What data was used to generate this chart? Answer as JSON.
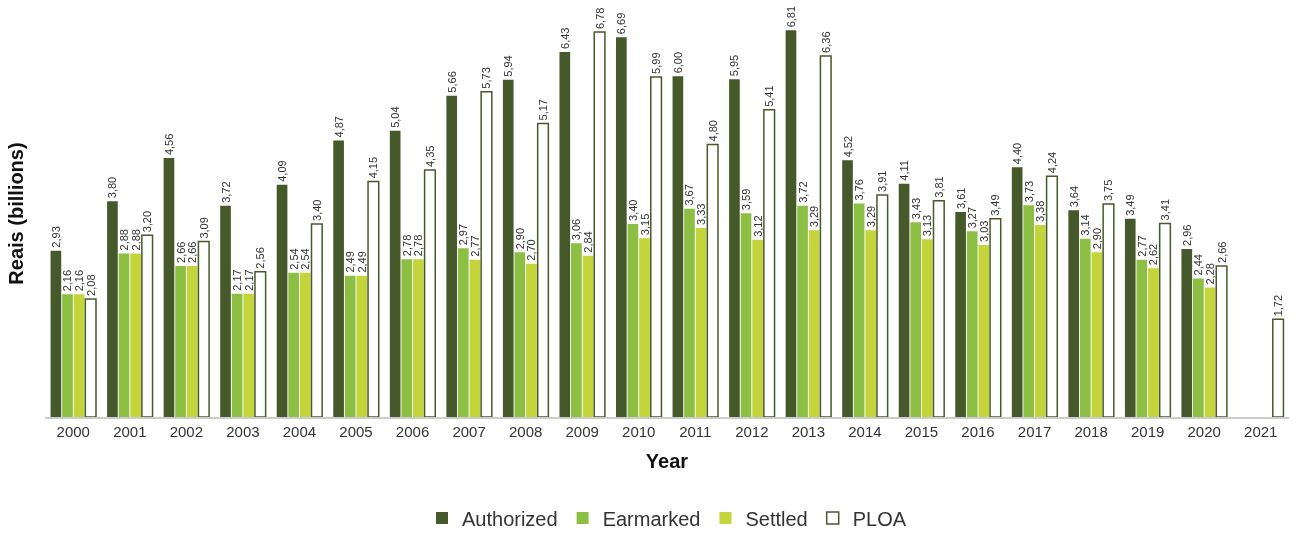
{
  "chart_data": {
    "type": "bar",
    "xlabel": "Year",
    "ylabel": "Reais (billions)",
    "legend": "bottom",
    "categories": [
      "2000",
      "2001",
      "2002",
      "2003",
      "2004",
      "2005",
      "2006",
      "2007",
      "2008",
      "2009",
      "2010",
      "2011",
      "2012",
      "2013",
      "2014",
      "2015",
      "2016",
      "2017",
      "2018",
      "2019",
      "2020",
      "2021"
    ],
    "series": [
      {
        "name": "Authorized",
        "color": "#46592b",
        "values": [
          2.93,
          3.8,
          4.56,
          3.72,
          4.09,
          4.87,
          5.04,
          5.66,
          5.94,
          6.43,
          6.69,
          6.0,
          5.95,
          6.81,
          4.52,
          4.11,
          3.61,
          4.4,
          3.64,
          3.49,
          2.96,
          null
        ],
        "value_labels": [
          "2,93",
          "3,80",
          "4,56",
          "3,72",
          "4,09",
          "4,87",
          "5,04",
          "5,66",
          "5,94",
          "6,43",
          "6,69",
          "6,00",
          "5,95",
          "6,81",
          "4,52",
          "4,11",
          "3,61",
          "4,40",
          "3,64",
          "3,49",
          "2,96",
          null
        ]
      },
      {
        "name": "Earmarked",
        "color": "#8cbf44",
        "values": [
          2.16,
          2.88,
          2.66,
          2.17,
          2.54,
          2.49,
          2.78,
          2.97,
          2.9,
          3.06,
          3.4,
          3.67,
          3.59,
          3.72,
          3.76,
          3.43,
          3.27,
          3.73,
          3.14,
          2.77,
          2.44,
          null
        ],
        "value_labels": [
          "2,16",
          "2,88",
          "2,66",
          "2,17",
          "2,54",
          "2,49",
          "2,78",
          "2,97",
          "2,90",
          "3,06",
          "3,40",
          "3,67",
          "3,59",
          "3,72",
          "3,76",
          "3,43",
          "3,27",
          "3,73",
          "3,14",
          "2,77",
          "2,44",
          null
        ]
      },
      {
        "name": "Settled",
        "color": "#c3d53a",
        "values": [
          2.16,
          2.88,
          2.66,
          2.17,
          2.54,
          2.49,
          2.78,
          2.77,
          2.7,
          2.84,
          3.15,
          3.33,
          3.12,
          3.29,
          3.29,
          3.13,
          3.03,
          3.38,
          2.9,
          2.62,
          2.28,
          null
        ],
        "value_labels": [
          "2,16",
          "2,88",
          "2,66",
          "2,17",
          "2,54",
          "2,49",
          "2,78",
          "2,77",
          "2,70",
          "2,84",
          "3,15",
          "3,33",
          "3,12",
          "3,29",
          "3,29",
          "3,13",
          "3,03",
          "3,38",
          "2,90",
          "2,62",
          "2,28",
          null
        ]
      },
      {
        "name": "PLOA",
        "color": "#ffffff",
        "values": [
          2.08,
          3.2,
          3.09,
          2.56,
          3.4,
          4.15,
          4.35,
          5.73,
          5.17,
          6.78,
          5.99,
          4.8,
          5.41,
          6.36,
          3.91,
          3.81,
          3.49,
          4.24,
          3.75,
          3.41,
          2.66,
          1.72
        ],
        "value_labels": [
          "2,08",
          "3,20",
          "3,09",
          "2,56",
          "3,40",
          "4,15",
          "4,35",
          "5,73",
          "5,17",
          "6,78",
          "5,99",
          "4,80",
          "5,41",
          "6,36",
          "3,91",
          "3,81",
          "3,49",
          "4,24",
          "3,75",
          "3,41",
          "2,66",
          "1,72"
        ]
      }
    ]
  }
}
